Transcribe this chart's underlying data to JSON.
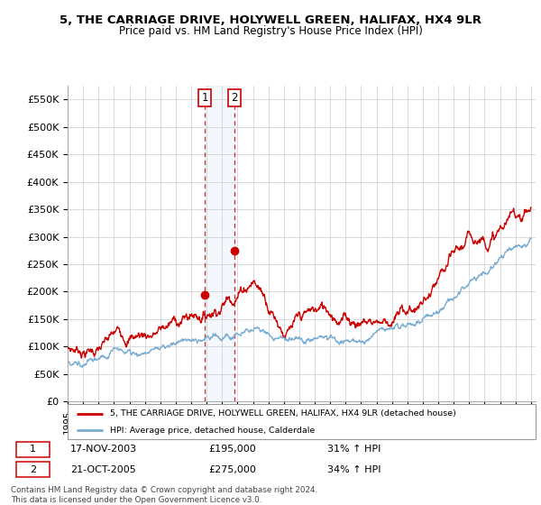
{
  "title": "5, THE CARRIAGE DRIVE, HOLYWELL GREEN, HALIFAX, HX4 9LR",
  "subtitle": "Price paid vs. HM Land Registry's House Price Index (HPI)",
  "ylim": [
    0,
    575000
  ],
  "yticks": [
    0,
    50000,
    100000,
    150000,
    200000,
    250000,
    300000,
    350000,
    400000,
    450000,
    500000,
    550000
  ],
  "ytick_labels": [
    "£0",
    "£50K",
    "£100K",
    "£150K",
    "£200K",
    "£250K",
    "£300K",
    "£350K",
    "£400K",
    "£450K",
    "£500K",
    "£550K"
  ],
  "legend_line1": "5, THE CARRIAGE DRIVE, HOLYWELL GREEN, HALIFAX, HX4 9LR (detached house)",
  "legend_line2": "HPI: Average price, detached house, Calderdale",
  "sale1_date": "17-NOV-2003",
  "sale1_price": "£195,000",
  "sale1_hpi": "31% ↑ HPI",
  "sale2_date": "21-OCT-2005",
  "sale2_price": "£275,000",
  "sale2_hpi": "34% ↑ HPI",
  "footer": "Contains HM Land Registry data © Crown copyright and database right 2024.\nThis data is licensed under the Open Government Licence v3.0.",
  "red_color": "#cc0000",
  "blue_color": "#7aadd4",
  "sale1_x": 2003.88,
  "sale2_x": 2005.8,
  "sale1_y": 195000,
  "sale2_y": 275000,
  "xmin": 1995,
  "xmax": 2025.3
}
